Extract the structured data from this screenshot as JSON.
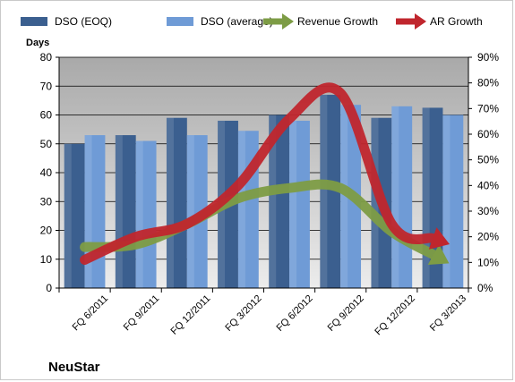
{
  "company_label": "NeuStar",
  "chart_data": {
    "type": "bar",
    "categories": [
      "FQ 6/2011",
      "FQ 9/2011",
      "FQ 12/2011",
      "FQ 3/2012",
      "FQ 6/2012",
      "FQ 9/2012",
      "FQ 12/2012",
      "FQ 3/2013"
    ],
    "ylabel": "Days",
    "ylim": [
      0,
      80
    ],
    "yticks": [
      "0",
      "10",
      "20",
      "30",
      "40",
      "50",
      "60",
      "70",
      "80"
    ],
    "y2lim": [
      0,
      0.9
    ],
    "y2ticks": [
      "0%",
      "10%",
      "20%",
      "30%",
      "40%",
      "50%",
      "60%",
      "70%",
      "80%",
      "90%"
    ],
    "grid": true,
    "legend_position": "top",
    "series": [
      {
        "name": "DSO (EOQ)",
        "type": "bar",
        "axis": "left",
        "color": "#3b5f8f",
        "values": [
          50,
          53,
          59,
          58,
          60,
          67,
          59,
          62.5
        ]
      },
      {
        "name": "DSO (average)",
        "type": "bar",
        "axis": "left",
        "color": "#6f9bd6",
        "values": [
          53,
          51,
          53,
          54.5,
          58,
          63.5,
          63,
          60
        ]
      },
      {
        "name": "Revenue Growth",
        "type": "arrow-line",
        "axis": "right",
        "color": "#7d9c45",
        "values": [
          0.16,
          0.17,
          0.25,
          0.35,
          0.39,
          0.39,
          0.22,
          0.11
        ]
      },
      {
        "name": "AR Growth",
        "type": "arrow-line",
        "axis": "right",
        "color": "#c0262d",
        "values": [
          0.11,
          0.2,
          0.25,
          0.4,
          0.66,
          0.76,
          0.25,
          0.18
        ]
      }
    ]
  }
}
